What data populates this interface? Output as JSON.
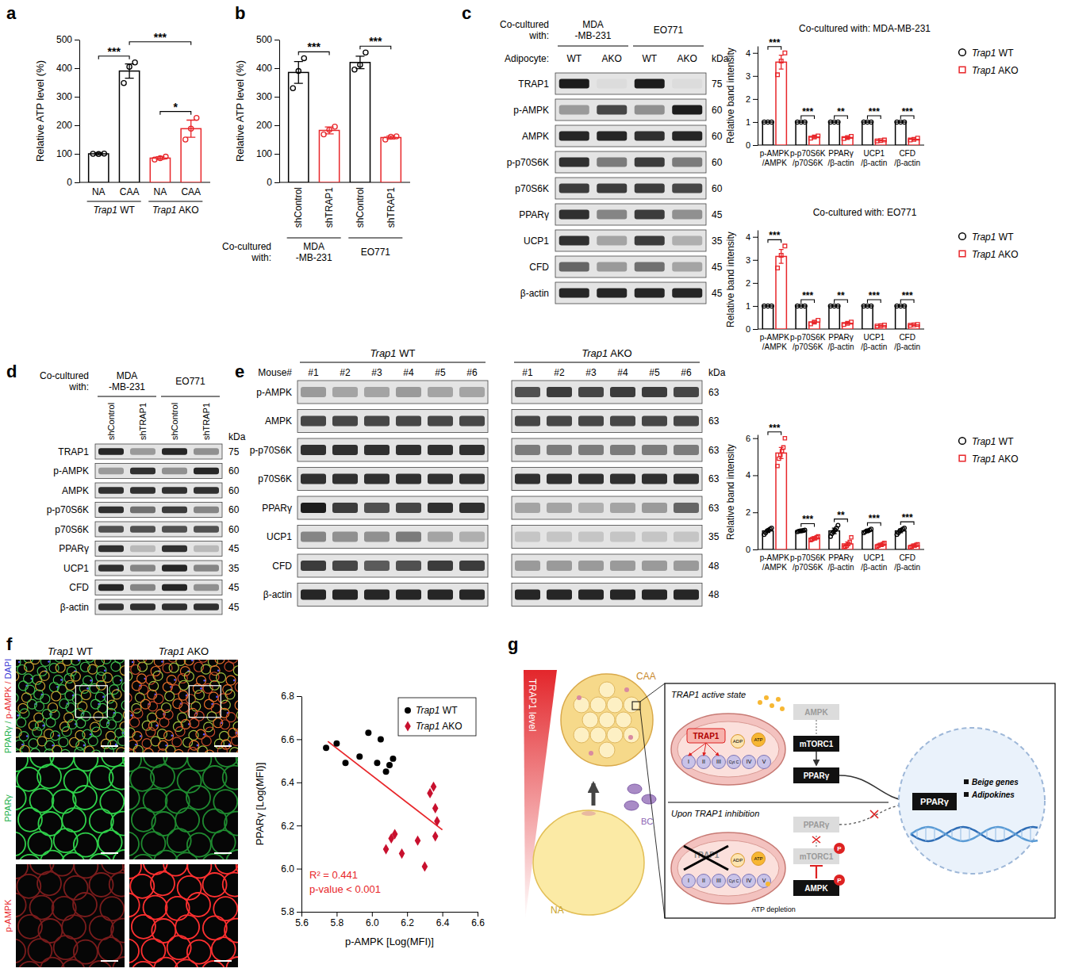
{
  "panel_labels": [
    "a",
    "b",
    "c",
    "d",
    "e",
    "f",
    "g"
  ],
  "chart_data": [
    {
      "type": "bar",
      "y_label": "Relative ATP level (%)",
      "categories": [
        "NA",
        "CAA",
        "NA",
        "CAA"
      ],
      "group_labels": [
        "Trap1 WT",
        "Trap1 AKO"
      ],
      "values": [
        100,
        390,
        85,
        188
      ],
      "errors": [
        3,
        25,
        5,
        30
      ],
      "points": [
        [
          100,
          99,
          101
        ],
        [
          348,
          405,
          420
        ],
        [
          80,
          85,
          90
        ],
        [
          150,
          188,
          226
        ]
      ],
      "colors": [
        "#000000",
        "#000000",
        "#e8262a",
        "#e8262a"
      ],
      "marker": "circle",
      "ylim": [
        0,
        500
      ],
      "yticks": [
        0,
        100,
        200,
        300,
        400,
        500
      ],
      "brackets": [
        {
          "from": 0,
          "to": 1,
          "text": "***"
        },
        {
          "from": 2,
          "to": 3,
          "text": "*"
        },
        {
          "from": 1,
          "to": 3,
          "text": "***"
        }
      ]
    },
    {
      "type": "bar",
      "y_label": "Relative ATP level (%)",
      "categories": [
        "shControl",
        "shTRAP1",
        "shControl",
        "shTRAP1"
      ],
      "group_title": "Co-cultured with:",
      "group_labels": [
        "MDA -MB-231",
        "EO771"
      ],
      "values": [
        385,
        182,
        420,
        157
      ],
      "errors": [
        38,
        12,
        22,
        5
      ],
      "points": [
        [
          330,
          390,
          435
        ],
        [
          168,
          184,
          195
        ],
        [
          395,
          412,
          455
        ],
        [
          150,
          160,
          161
        ]
      ],
      "colors": [
        "#000000",
        "#e8262a",
        "#000000",
        "#e8262a"
      ],
      "marker": "circle",
      "ylim": [
        0,
        500
      ],
      "yticks": [
        0,
        100,
        200,
        300,
        400,
        500
      ],
      "brackets": [
        {
          "from": 0,
          "to": 1,
          "text": "***"
        },
        {
          "from": 2,
          "to": 3,
          "text": "***"
        }
      ]
    },
    {
      "type": "bar",
      "title": "Co-cultured with: MDA-MB-231",
      "y_label": "Relative band intensity",
      "categories": [
        "p-AMPK /AMPK",
        "p-p70S6K /p70S6K",
        "PPARγ /β-actin",
        "UCP1 /β-actin",
        "CFD /β-actin"
      ],
      "ylim": [
        0,
        4.3
      ],
      "yticks": [
        0,
        1,
        2,
        3,
        4
      ],
      "legend": "upper right",
      "significance": [
        "***",
        "***",
        "**",
        "***",
        "***"
      ],
      "series": [
        {
          "name": "Trap1 WT",
          "color": "#000000",
          "marker": "circle",
          "values": [
            1,
            1,
            1,
            1,
            1
          ],
          "errors": [
            0,
            0,
            0,
            0,
            0
          ],
          "points": [
            [
              1,
              1,
              1
            ],
            [
              1,
              1,
              1
            ],
            [
              1,
              1,
              1
            ],
            [
              1,
              1,
              1
            ],
            [
              1,
              1,
              1
            ]
          ]
        },
        {
          "name": "Trap1 AKO",
          "color": "#e8262a",
          "marker": "square",
          "values": [
            3.6,
            0.35,
            0.33,
            0.2,
            0.25
          ],
          "errors": [
            0.3,
            0.04,
            0.04,
            0.02,
            0.03
          ],
          "points": [
            [
              3.05,
              3.65,
              4.0
            ],
            [
              0.3,
              0.35,
              0.4
            ],
            [
              0.28,
              0.33,
              0.38
            ],
            [
              0.18,
              0.2,
              0.22
            ],
            [
              0.22,
              0.25,
              0.3
            ]
          ]
        }
      ]
    },
    {
      "type": "bar",
      "title": "Co-cultured with: EO771",
      "y_label": "Relative band intensity",
      "categories": [
        "p-AMPK /AMPK",
        "p-p70S6K /p70S6K",
        "PPARγ /β-actin",
        "UCP1 /β-actin",
        "CFD /β-actin"
      ],
      "ylim": [
        0,
        4.3
      ],
      "yticks": [
        0,
        1,
        2,
        3,
        4
      ],
      "legend": "upper right",
      "significance": [
        "***",
        "***",
        "**",
        "***",
        "***"
      ],
      "series": [
        {
          "name": "Trap1 WT",
          "color": "#000000",
          "marker": "circle",
          "values": [
            1,
            1,
            1,
            1,
            1
          ],
          "errors": [
            0,
            0,
            0,
            0,
            0
          ],
          "points": [
            [
              1,
              1,
              1
            ],
            [
              1,
              1,
              1
            ],
            [
              1,
              1,
              1
            ],
            [
              1,
              1,
              1
            ],
            [
              1,
              1,
              1
            ]
          ]
        },
        {
          "name": "Trap1 AKO",
          "color": "#e8262a",
          "marker": "square",
          "values": [
            3.15,
            0.3,
            0.25,
            0.15,
            0.18
          ],
          "errors": [
            0.3,
            0.05,
            0.04,
            0.02,
            0.02
          ],
          "points": [
            [
              2.65,
              3.2,
              3.6
            ],
            [
              0.22,
              0.3,
              0.38
            ],
            [
              0.2,
              0.25,
              0.3
            ],
            [
              0.13,
              0.15,
              0.17
            ],
            [
              0.16,
              0.18,
              0.2
            ]
          ]
        }
      ]
    },
    {
      "type": "bar",
      "y_label": "Relative band intensity",
      "categories": [
        "p-AMPK /AMPK",
        "p-p70S6K /p70S6K",
        "PPARγ /β-actin",
        "UCP1 /β-actin",
        "CFD /β-actin"
      ],
      "ylim": [
        0,
        6.2
      ],
      "yticks": [
        0,
        2,
        4,
        6
      ],
      "legend": "upper right",
      "significance": [
        "***",
        "***",
        "**",
        "***",
        "***"
      ],
      "series": [
        {
          "name": "Trap1 WT",
          "color": "#000000",
          "marker": "circle",
          "values": [
            1,
            1,
            1,
            1,
            1
          ],
          "errors": [
            0.08,
            0.05,
            0.15,
            0.06,
            0.1
          ],
          "points": [
            [
              0.8,
              0.9,
              1.0,
              1.05,
              1.1,
              1.15
            ],
            [
              0.95,
              0.98,
              1.0,
              1.0,
              1.02,
              1.05
            ],
            [
              0.7,
              0.85,
              0.95,
              1.05,
              1.15,
              1.3
            ],
            [
              0.9,
              0.95,
              1.0,
              1.0,
              1.05,
              1.1
            ],
            [
              0.8,
              0.9,
              1.0,
              1.05,
              1.1,
              1.15
            ]
          ]
        },
        {
          "name": "Trap1 AKO",
          "color": "#e8262a",
          "marker": "square",
          "values": [
            5.2,
            0.6,
            0.3,
            0.25,
            0.2
          ],
          "errors": [
            0.3,
            0.05,
            0.1,
            0.04,
            0.04
          ],
          "points": [
            [
              4.5,
              4.9,
              5.1,
              5.3,
              5.5,
              6.0
            ],
            [
              0.5,
              0.55,
              0.6,
              0.6,
              0.65,
              0.7
            ],
            [
              0.1,
              0.15,
              0.2,
              0.3,
              0.4,
              0.65
            ],
            [
              0.15,
              0.2,
              0.25,
              0.25,
              0.3,
              0.35
            ],
            [
              0.12,
              0.15,
              0.2,
              0.2,
              0.25,
              0.28
            ]
          ]
        }
      ]
    },
    {
      "type": "scatter",
      "x_label": "p-AMPK [Log(MFI)]",
      "y_label": "PPARγ [Log(MFI)]",
      "xlim": [
        5.6,
        6.6
      ],
      "xticks": [
        5.6,
        5.8,
        {
          "value": 6,
          "label": "6.0"
        },
        6.2,
        6.4,
        6.6
      ],
      "ylim": [
        5.8,
        6.8
      ],
      "yticks": [
        5.8,
        {
          "value": 6,
          "label": "6.0"
        },
        6.2,
        6.4,
        6.6,
        6.8
      ],
      "legend": "upper right",
      "series": [
        {
          "name": "Trap1 WT",
          "color": "#000000",
          "marker": "circle",
          "x": [
            5.74,
            5.8,
            5.85,
            5.93,
            5.98,
            6.03,
            6.05,
            6.08,
            6.1,
            6.12
          ],
          "values": [
            6.56,
            6.58,
            6.49,
            6.52,
            6.63,
            6.49,
            6.6,
            6.45,
            6.48,
            6.51
          ]
        },
        {
          "name": "Trap1 AKO",
          "color": "#c8102e",
          "marker": "diamond",
          "x": [
            6.08,
            6.11,
            6.13,
            6.17,
            6.26,
            6.3,
            6.33,
            6.35,
            6.36,
            6.37,
            6.36
          ],
          "values": [
            6.09,
            6.14,
            6.16,
            6.07,
            6.13,
            6.01,
            6.35,
            6.38,
            6.28,
            6.22,
            6.15
          ]
        }
      ],
      "fit": {
        "color": "#e8262a",
        "x": [
          5.75,
          6.4
        ],
        "values": [
          6.59,
          6.18
        ]
      },
      "annotations": [
        "R² = 0.441",
        "p-value < 0.001"
      ]
    }
  ],
  "blots": [
    {
      "header_title": "Co-cultured with:",
      "groups": [
        "MDA -MB-231",
        "EO771"
      ],
      "lane_title": "Adipocyte:",
      "lanes": [
        "WT",
        "AKO",
        "WT",
        "AKO"
      ],
      "unit": "kDa",
      "rows": [
        {
          "label": "TRAP1",
          "kda": 75,
          "bands": [
            0.95,
            0.04,
            0.95,
            0.04
          ]
        },
        {
          "label": "p-AMPK",
          "kda": 60,
          "bands": [
            0.35,
            0.75,
            0.4,
            0.95
          ]
        },
        {
          "label": "AMPK",
          "kda": 60,
          "bands": [
            0.9,
            0.9,
            0.85,
            0.9
          ]
        },
        {
          "label": "p-p70S6K",
          "kda": 60,
          "bands": [
            0.85,
            0.5,
            0.8,
            0.5
          ]
        },
        {
          "label": "p70S6K",
          "kda": 60,
          "bands": [
            0.8,
            0.8,
            0.8,
            0.75
          ]
        },
        {
          "label": "PPARγ",
          "kda": 45,
          "bands": [
            0.85,
            0.45,
            0.8,
            0.4
          ]
        },
        {
          "label": "UCP1",
          "kda": 35,
          "bands": [
            0.85,
            0.3,
            0.8,
            0.25
          ]
        },
        {
          "label": "CFD",
          "kda": 45,
          "bands": [
            0.6,
            0.35,
            0.55,
            0.3
          ]
        },
        {
          "label": "β-actin",
          "kda": 45,
          "bands": [
            0.9,
            0.9,
            0.9,
            0.9
          ]
        }
      ]
    },
    {
      "header_title": "Co-cultured with:",
      "groups": [
        "MDA -MB-231",
        "EO771"
      ],
      "lanes": [
        "shControl",
        "shTRAP1",
        "shControl",
        "shTRAP1"
      ],
      "unit": "kDa",
      "rows": [
        {
          "label": "TRAP1",
          "kda": 75,
          "bands": [
            0.9,
            0.35,
            0.9,
            0.4
          ]
        },
        {
          "label": "p-AMPK",
          "kda": 60,
          "bands": [
            0.35,
            0.85,
            0.4,
            0.9
          ]
        },
        {
          "label": "AMPK",
          "kda": 60,
          "bands": [
            0.85,
            0.85,
            0.85,
            0.85
          ]
        },
        {
          "label": "p-p70S6K",
          "kda": 60,
          "bands": [
            0.85,
            0.55,
            0.8,
            0.45
          ]
        },
        {
          "label": "p70S6K",
          "kda": 60,
          "bands": [
            0.7,
            0.7,
            0.7,
            0.7
          ]
        },
        {
          "label": "PPARγ",
          "kda": 45,
          "bands": [
            0.85,
            0.2,
            0.85,
            0.2
          ]
        },
        {
          "label": "UCP1",
          "kda": 35,
          "bands": [
            0.85,
            0.45,
            0.9,
            0.45
          ]
        },
        {
          "label": "CFD",
          "kda": 45,
          "bands": [
            0.9,
            0.45,
            0.9,
            0.4
          ]
        },
        {
          "label": "β-actin",
          "kda": 45,
          "bands": [
            0.85,
            0.85,
            0.85,
            0.85
          ]
        }
      ]
    },
    {
      "groups": [
        "Trap1 WT",
        "Trap1 AKO"
      ],
      "lane_title": "Mouse#",
      "lanes": [
        "#1",
        "#2",
        "#3",
        "#4",
        "#5",
        "#6",
        "#1",
        "#2",
        "#3",
        "#4",
        "#5",
        "#6"
      ],
      "unit": "kDa",
      "rows": [
        {
          "label": "p-AMPK",
          "kda": 63,
          "bands": [
            0.35,
            0.3,
            0.3,
            0.35,
            0.3,
            0.3,
            0.7,
            0.8,
            0.75,
            0.8,
            0.8,
            0.75
          ]
        },
        {
          "label": "AMPK",
          "kda": 63,
          "bands": [
            0.75,
            0.75,
            0.75,
            0.75,
            0.75,
            0.75,
            0.75,
            0.75,
            0.75,
            0.75,
            0.75,
            0.75
          ]
        },
        {
          "label": "p-p70S6K",
          "kda": 63,
          "bands": [
            0.85,
            0.85,
            0.85,
            0.85,
            0.85,
            0.85,
            0.5,
            0.5,
            0.5,
            0.5,
            0.5,
            0.5
          ]
        },
        {
          "label": "p70S6K",
          "kda": 63,
          "bands": [
            0.85,
            0.85,
            0.85,
            0.85,
            0.85,
            0.85,
            0.85,
            0.85,
            0.85,
            0.85,
            0.85,
            0.85
          ]
        },
        {
          "label": "PPARγ",
          "kda": 63,
          "bands": [
            0.95,
            0.8,
            0.7,
            0.75,
            0.85,
            0.85,
            0.3,
            0.3,
            0.25,
            0.3,
            0.35,
            0.6
          ]
        },
        {
          "label": "UCP1",
          "kda": 35,
          "bands": [
            0.45,
            0.4,
            0.4,
            0.5,
            0.3,
            0.25,
            0.15,
            0.15,
            0.15,
            0.15,
            0.15,
            0.15
          ]
        },
        {
          "label": "CFD",
          "kda": 48,
          "bands": [
            0.8,
            0.75,
            0.65,
            0.7,
            0.8,
            0.8,
            0.35,
            0.35,
            0.35,
            0.35,
            0.35,
            0.35
          ]
        },
        {
          "label": "β-actin",
          "kda": 48,
          "bands": [
            0.9,
            0.9,
            0.9,
            0.9,
            0.9,
            0.9,
            0.9,
            0.9,
            0.9,
            0.9,
            0.9,
            0.9
          ]
        }
      ]
    }
  ],
  "images": {
    "columns": [
      "Trap1 WT",
      "Trap1 AKO"
    ],
    "rows": [
      {
        "label": [
          "PPARγ /",
          "p-AMPK /",
          "DAPI"
        ],
        "colors": [
          "#22b14c",
          "#e8262a",
          "#3b3bd6"
        ]
      },
      {
        "label": [
          "PPARγ"
        ],
        "colors": [
          "#22b14c"
        ]
      },
      {
        "label": [
          "p-AMPK"
        ],
        "colors": [
          "#e8262a"
        ]
      }
    ]
  },
  "diagram": {
    "gradient_label": "TRAP1 level",
    "cells": [
      "CAA",
      "NA",
      "BC"
    ],
    "states": [
      {
        "title": "TRAP1 active state",
        "protein": "TRAP1",
        "cascade": [
          "AMPK",
          "mTORC1",
          "PPARγ"
        ]
      },
      {
        "title": "Upon TRAP1 inhibition",
        "protein": "TRAP1",
        "cascade": [
          "PPARγ",
          "mTORC1",
          "AMPK"
        ],
        "note": "ATP depletion"
      }
    ],
    "complexes": [
      "I",
      "II",
      "III",
      "Cyt C",
      "IV",
      "V"
    ],
    "metabolites": [
      "ADP",
      "ATP"
    ],
    "phospho": "P",
    "nucleus": {
      "factor": "PPARγ",
      "targets": [
        "Beige genes",
        "Adipokines"
      ]
    }
  }
}
